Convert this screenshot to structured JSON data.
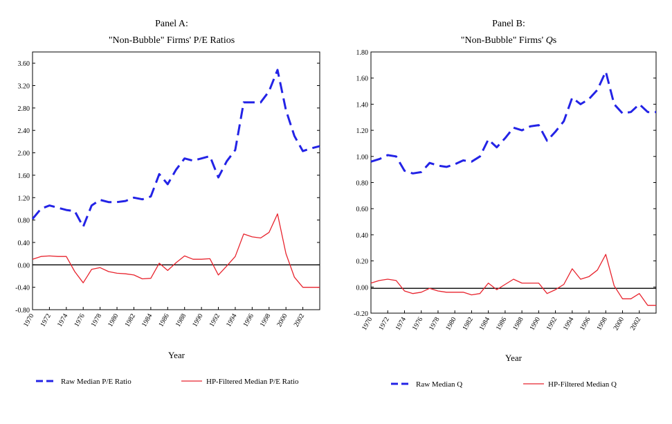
{
  "chart_data": [
    {
      "type": "line",
      "title": "Panel A:",
      "subtitle": "\"Non-Bubble\" Firms' P/E Ratios",
      "xlabel": "Year",
      "ylabel": "",
      "xlim": [
        1970,
        2004
      ],
      "ylim": [
        -0.8,
        3.8
      ],
      "yticks": [
        -0.8,
        -0.4,
        0.0,
        0.4,
        0.8,
        1.2,
        1.6,
        2.0,
        2.4,
        2.8,
        3.2,
        3.6
      ],
      "ytick_labels": [
        "-0.80",
        "-0.40",
        "0.00",
        "0.40",
        "0.80",
        "1.20",
        "1.60",
        "2.00",
        "2.40",
        "2.80",
        "3.20",
        "3.60"
      ],
      "xticks": [
        1970,
        1972,
        1974,
        1976,
        1978,
        1980,
        1982,
        1984,
        1986,
        1988,
        1990,
        1992,
        1994,
        1996,
        1998,
        2000,
        2002
      ],
      "xtick_labels": [
        "1970",
        "1972",
        "1974",
        "1976",
        "1978",
        "1980",
        "1982",
        "1984",
        "1986",
        "1988",
        "1990",
        "1992",
        "1994",
        "1996",
        "1998",
        "2000",
        "2002"
      ],
      "zero_line": true,
      "legend_position": "bottom",
      "x": [
        1970,
        1971,
        1972,
        1973,
        1974,
        1975,
        1976,
        1977,
        1978,
        1979,
        1980,
        1981,
        1982,
        1983,
        1984,
        1985,
        1986,
        1987,
        1988,
        1989,
        1990,
        1991,
        1992,
        1993,
        1994,
        1995,
        1996,
        1997,
        1998,
        1999,
        2000,
        2001,
        2002,
        2003,
        2004
      ],
      "series": [
        {
          "name": "Raw Median P/E Ratio",
          "style": "dashed",
          "color": "#2323e6",
          "values": [
            0.82,
            1.0,
            1.06,
            1.02,
            0.98,
            0.96,
            0.68,
            1.06,
            1.16,
            1.12,
            1.12,
            1.14,
            1.2,
            1.17,
            1.22,
            1.62,
            1.44,
            1.7,
            1.9,
            1.86,
            1.9,
            1.94,
            1.56,
            1.85,
            2.05,
            2.9,
            2.9,
            2.9,
            3.1,
            3.48,
            2.76,
            2.3,
            2.03,
            2.08,
            2.12
          ]
        },
        {
          "name": "HP-Filtered Median P/E Ratio",
          "style": "solid",
          "color": "#e8232d",
          "values": [
            0.1,
            0.15,
            0.16,
            0.15,
            0.15,
            -0.12,
            -0.32,
            -0.08,
            -0.05,
            -0.12,
            -0.15,
            -0.16,
            -0.18,
            -0.25,
            -0.24,
            0.03,
            -0.1,
            0.04,
            0.16,
            0.1,
            0.1,
            0.11,
            -0.18,
            -0.02,
            0.15,
            0.55,
            0.5,
            0.48,
            0.58,
            0.91,
            0.2,
            -0.22,
            -0.4,
            -0.4,
            -0.4
          ]
        }
      ]
    },
    {
      "type": "line",
      "title": "Panel B:",
      "subtitle": "\"Non-Bubble\" Firms' Q s",
      "subtitle_parts": [
        "\"Non-Bubble\" Firms' ",
        "Q",
        "s"
      ],
      "xlabel": "Year",
      "ylabel": "",
      "xlim": [
        1970,
        2004
      ],
      "ylim": [
        -0.2,
        1.8
      ],
      "yticks": [
        -0.2,
        0.0,
        0.2,
        0.4,
        0.6,
        0.8,
        1.0,
        1.2,
        1.4,
        1.6,
        1.8
      ],
      "ytick_labels": [
        "-0.20",
        "0.00",
        "0.20",
        "0.40",
        "0.60",
        "0.80",
        "1.00",
        "1.20",
        "1.40",
        "1.60",
        "1.80"
      ],
      "xticks": [
        1970,
        1972,
        1974,
        1976,
        1978,
        1980,
        1982,
        1984,
        1986,
        1988,
        1990,
        1992,
        1994,
        1996,
        1998,
        2000,
        2002
      ],
      "xtick_labels": [
        "1970",
        "1972",
        "1974",
        "1976",
        "1978",
        "1980",
        "1982",
        "1984",
        "1986",
        "1988",
        "1990",
        "1992",
        "1994",
        "1996",
        "1998",
        "2000",
        "2002"
      ],
      "zero_line": true,
      "zero_line_value": -0.01,
      "legend_position": "bottom",
      "x": [
        1970,
        1971,
        1972,
        1973,
        1974,
        1975,
        1976,
        1977,
        1978,
        1979,
        1980,
        1981,
        1982,
        1983,
        1984,
        1985,
        1986,
        1987,
        1988,
        1989,
        1990,
        1991,
        1992,
        1993,
        1994,
        1995,
        1996,
        1997,
        1998,
        1999,
        2000,
        2001,
        2002,
        2003,
        2004
      ],
      "series": [
        {
          "name": "Raw Median Q",
          "style": "dashed",
          "color": "#2323e6",
          "values": [
            0.96,
            0.98,
            1.01,
            1.0,
            0.89,
            0.87,
            0.88,
            0.95,
            0.93,
            0.92,
            0.94,
            0.97,
            0.96,
            1.0,
            1.13,
            1.07,
            1.14,
            1.22,
            1.2,
            1.23,
            1.24,
            1.12,
            1.19,
            1.27,
            1.45,
            1.4,
            1.44,
            1.51,
            1.65,
            1.4,
            1.33,
            1.34,
            1.4,
            1.34,
            1.34
          ]
        },
        {
          "name": "HP-Filtered Median Q",
          "style": "solid",
          "color": "#e8232d",
          "values": [
            0.03,
            0.05,
            0.06,
            0.05,
            -0.03,
            -0.05,
            -0.04,
            -0.01,
            -0.03,
            -0.04,
            -0.04,
            -0.04,
            -0.06,
            -0.05,
            0.03,
            -0.02,
            0.02,
            0.06,
            0.03,
            0.03,
            0.03,
            -0.05,
            -0.02,
            0.02,
            0.14,
            0.06,
            0.08,
            0.13,
            0.25,
            0.01,
            -0.09,
            -0.09,
            -0.05,
            -0.14,
            -0.14
          ]
        }
      ]
    }
  ]
}
